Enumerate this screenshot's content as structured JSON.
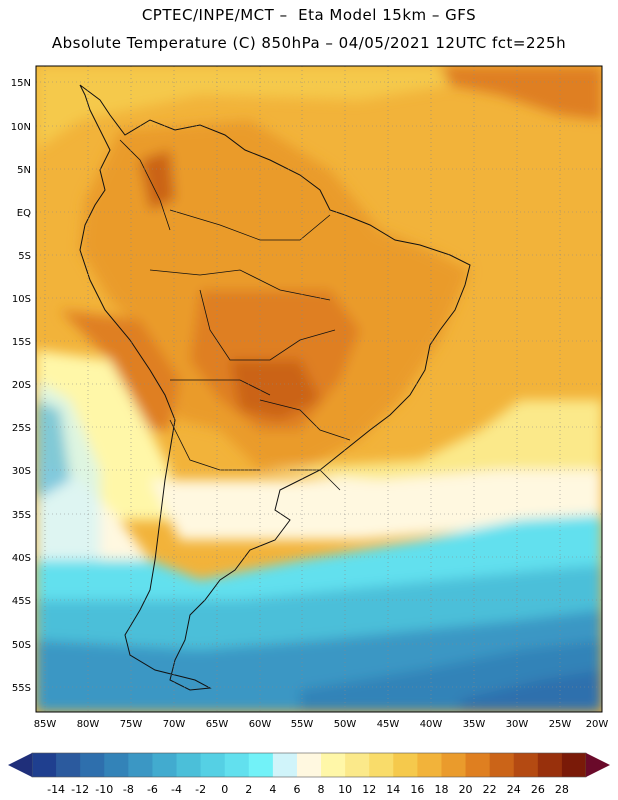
{
  "header": {
    "line1": "CPTEC/INPE/MCT –  Eta Model 15km – GFS",
    "line2": "Absolute Temperature (C) 850hPa – 04/05/2021 12UTC fct=225h"
  },
  "map": {
    "lat_labels": [
      "15N",
      "10N",
      "5N",
      "EQ",
      "5S",
      "10S",
      "15S",
      "20S",
      "25S",
      "30S",
      "35S",
      "40S",
      "45S",
      "50S",
      "55S"
    ],
    "lon_labels": [
      "85W",
      "80W",
      "75W",
      "70W",
      "65W",
      "60W",
      "55W",
      "50W",
      "45W",
      "40W",
      "35W",
      "30W",
      "25W",
      "20W"
    ]
  },
  "colorbar": {
    "ticks": [
      "-14",
      "-12",
      "-10",
      "-8",
      "-6",
      "-4",
      "-2",
      "0",
      "2",
      "4",
      "6",
      "8",
      "10",
      "12",
      "14",
      "16",
      "18",
      "20",
      "22",
      "24",
      "26",
      "28"
    ],
    "colors": [
      "#1f3f8f",
      "#2b5a9e",
      "#2e6fad",
      "#3383b8",
      "#3b97c4",
      "#42abcf",
      "#4bbfd9",
      "#55d0e4",
      "#62e0ee",
      "#72f2f8",
      "#d0f4fa",
      "#fff8e0",
      "#fff7a8",
      "#fbe98a",
      "#f9dc6a",
      "#f5c94c",
      "#f2b33a",
      "#ea9b2c",
      "#df7f20",
      "#cb6418",
      "#b44a12",
      "#98300c",
      "#7a1a08"
    ],
    "arrow_low": "#1f2f7a",
    "arrow_high": "#6a0a2a"
  }
}
